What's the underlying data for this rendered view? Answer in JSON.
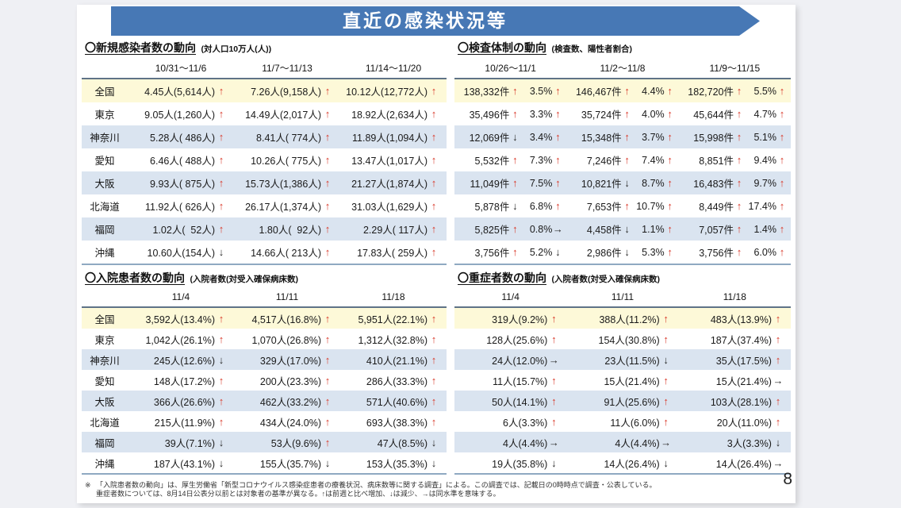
{
  "banner": {
    "title": "直近の感染状況等"
  },
  "colors": {
    "banner_blue": "#4778b5",
    "national_row_yellow": "#fdf9d8",
    "stripe_row_blue": "#dae4f0",
    "arrow_up_red": "#d93a2b",
    "arrow_neutral_black": "#2b2b2b"
  },
  "row_labels": [
    "全国",
    "東京",
    "神奈川",
    "愛知",
    "大阪",
    "北海道",
    "福岡",
    "沖縄"
  ],
  "sections": {
    "new_cases": {
      "title": "〇新規感染者数の動向",
      "subtitle": "(対人口10万人(人))",
      "columns": [
        "10/31～11/6",
        "11/7～11/13",
        "11/14～11/20"
      ],
      "rows": [
        [
          [
            "4.45人(5,614人)",
            "↑"
          ],
          [
            "7.26人(9,158人)",
            "↑"
          ],
          [
            "10.12人(12,772人)",
            "↑"
          ]
        ],
        [
          [
            "9.05人(1,260人)",
            "↑"
          ],
          [
            "14.49人(2,017人)",
            "↑"
          ],
          [
            "18.92人(2,634人)",
            "↑"
          ]
        ],
        [
          [
            "5.28人( 486人)",
            "↑"
          ],
          [
            "8.41人( 774人)",
            "↑"
          ],
          [
            "11.89人(1,094人)",
            "↑"
          ]
        ],
        [
          [
            "6.46人( 488人)",
            "↑"
          ],
          [
            "10.26人( 775人)",
            "↑"
          ],
          [
            "13.47人(1,017人)",
            "↑"
          ]
        ],
        [
          [
            "9.93人( 875人)",
            "↑"
          ],
          [
            "15.73人(1,386人)",
            "↑"
          ],
          [
            "21.27人(1,874人)",
            "↑"
          ]
        ],
        [
          [
            "11.92人( 626人)",
            "↑"
          ],
          [
            "26.17人(1,374人)",
            "↑"
          ],
          [
            "31.03人(1,629人)",
            "↑"
          ]
        ],
        [
          [
            "1.02人(  52人)",
            "↑"
          ],
          [
            "1.80人(  92人)",
            "↑"
          ],
          [
            "2.29人( 117人)",
            "↑"
          ]
        ],
        [
          [
            "10.60人(154人)",
            "↓"
          ],
          [
            "14.66人( 213人)",
            "↑"
          ],
          [
            "17.83人( 259人)",
            "↑"
          ]
        ]
      ]
    },
    "testing": {
      "title": "〇検査体制の動向",
      "subtitle": "(検査数、陽性者割合)",
      "columns": [
        "10/26～11/1",
        "11/2～11/8",
        "11/9～11/15"
      ],
      "rows": [
        [
          [
            "138,332件",
            "↑",
            "3.5%",
            "↑"
          ],
          [
            "146,467件",
            "↑",
            "4.4%",
            "↑"
          ],
          [
            "182,720件",
            "↑",
            "5.5%",
            "↑"
          ]
        ],
        [
          [
            "35,496件",
            "↑",
            "3.3%",
            "↑"
          ],
          [
            "35,724件",
            "↑",
            "4.0%",
            "↑"
          ],
          [
            "45,644件",
            "↑",
            "4.7%",
            "↑"
          ]
        ],
        [
          [
            "12,069件",
            "↓",
            "3.4%",
            "↑"
          ],
          [
            "15,348件",
            "↑",
            "3.7%",
            "↑"
          ],
          [
            "15,998件",
            "↑",
            "5.1%",
            "↑"
          ]
        ],
        [
          [
            "5,532件",
            "↑",
            "7.3%",
            "↑"
          ],
          [
            "7,246件",
            "↑",
            "7.4%",
            "↑"
          ],
          [
            "8,851件",
            "↑",
            "9.4%",
            "↑"
          ]
        ],
        [
          [
            "11,049件",
            "↑",
            "7.5%",
            "↑"
          ],
          [
            "10,821件",
            "↓",
            "8.7%",
            "↑"
          ],
          [
            "16,483件",
            "↑",
            "9.7%",
            "↑"
          ]
        ],
        [
          [
            "5,878件",
            "↓",
            "6.8%",
            "↑"
          ],
          [
            "7,653件",
            "↑",
            "10.7%",
            "↑"
          ],
          [
            "8,449件",
            "↑",
            "17.4%",
            "↑"
          ]
        ],
        [
          [
            "5,825件",
            "↑",
            "0.8%",
            "→"
          ],
          [
            "4,458件",
            "↓",
            "1.1%",
            "↑"
          ],
          [
            "7,057件",
            "↑",
            "1.4%",
            "↑"
          ]
        ],
        [
          [
            "3,756件",
            "↑",
            "5.2%",
            "↓"
          ],
          [
            "2,986件",
            "↓",
            "5.3%",
            "↑"
          ],
          [
            "3,756件",
            "↑",
            "6.0%",
            "↑"
          ]
        ]
      ]
    },
    "inpatients": {
      "title": "〇入院患者数の動向",
      "subtitle": "(入院者数(対受入確保病床数)",
      "columns": [
        "11/4",
        "11/11",
        "11/18"
      ],
      "rows": [
        [
          [
            "3,592人(13.4%)",
            "↑"
          ],
          [
            "4,517人(16.8%)",
            "↑"
          ],
          [
            "5,951人(22.1%)",
            "↑"
          ]
        ],
        [
          [
            "1,042人(26.1%)",
            "↑"
          ],
          [
            "1,070人(26.8%)",
            "↑"
          ],
          [
            "1,312人(32.8%)",
            "↑"
          ]
        ],
        [
          [
            "245人(12.6%)",
            "↓"
          ],
          [
            "329人(17.0%)",
            "↑"
          ],
          [
            "410人(21.1%)",
            "↑"
          ]
        ],
        [
          [
            "148人(17.2%)",
            "↑"
          ],
          [
            "200人(23.3%)",
            "↑"
          ],
          [
            "286人(33.3%)",
            "↑"
          ]
        ],
        [
          [
            "366人(26.6%)",
            "↑"
          ],
          [
            "462人(33.2%)",
            "↑"
          ],
          [
            "571人(40.6%)",
            "↑"
          ]
        ],
        [
          [
            "215人(11.9%)",
            "↑"
          ],
          [
            "434人(24.0%)",
            "↑"
          ],
          [
            "693人(38.3%)",
            "↑"
          ]
        ],
        [
          [
            "39人(7.1%)",
            "↓"
          ],
          [
            "53人(9.6%)",
            "↑"
          ],
          [
            "47人(8.5%)",
            "↓"
          ]
        ],
        [
          [
            "187人(43.1%)",
            "↓"
          ],
          [
            "155人(35.7%)",
            "↓"
          ],
          [
            "153人(35.3%)",
            "↓"
          ]
        ]
      ]
    },
    "severe": {
      "title": "〇重症者数の動向",
      "subtitle": "(入院者数(対受入確保病床数)",
      "columns": [
        "11/4",
        "11/11",
        "11/18"
      ],
      "rows": [
        [
          [
            "319人(9.2%)",
            "↑"
          ],
          [
            "388人(11.2%)",
            "↑"
          ],
          [
            "483人(13.9%)",
            "↑"
          ]
        ],
        [
          [
            "128人(25.6%)",
            "↑"
          ],
          [
            "154人(30.8%)",
            "↑"
          ],
          [
            "187人(37.4%)",
            "↑"
          ]
        ],
        [
          [
            "24人(12.0%)",
            "→"
          ],
          [
            "23人(11.5%)",
            "↓"
          ],
          [
            "35人(17.5%)",
            "↑"
          ]
        ],
        [
          [
            "11人(15.7%)",
            "↑"
          ],
          [
            "15人(21.4%)",
            "↑"
          ],
          [
            "15人(21.4%)",
            "→"
          ]
        ],
        [
          [
            "50人(14.1%)",
            "↑"
          ],
          [
            "91人(25.6%)",
            "↑"
          ],
          [
            "103人(28.1%)",
            "↑"
          ]
        ],
        [
          [
            "6人(3.3%)",
            "↑"
          ],
          [
            "11人(6.0%)",
            "↑"
          ],
          [
            "20人(11.0%)",
            "↑"
          ]
        ],
        [
          [
            "4人(4.4%)",
            "→"
          ],
          [
            "4人(4.4%)",
            "→"
          ],
          [
            "3人(3.3%)",
            "↓"
          ]
        ],
        [
          [
            "19人(35.8%)",
            "↓"
          ],
          [
            "14人(26.4%)",
            "↓"
          ],
          [
            "14人(26.4%)",
            "→"
          ]
        ]
      ]
    }
  },
  "footnote": {
    "marker": "※",
    "line1": "「入院患者数の動向」は、厚生労働省「新型コロナウイルス感染症患者の療養状況、病床数等に関する調査」による。この調査では、記載日の0時時点で調査・公表している。",
    "line2": "重症者数については、8月14日公表分以前とは対象者の基準が異なる。↑は前週と比べ増加、↓は減少、→は同水準を意味する。"
  },
  "page_number": "8"
}
